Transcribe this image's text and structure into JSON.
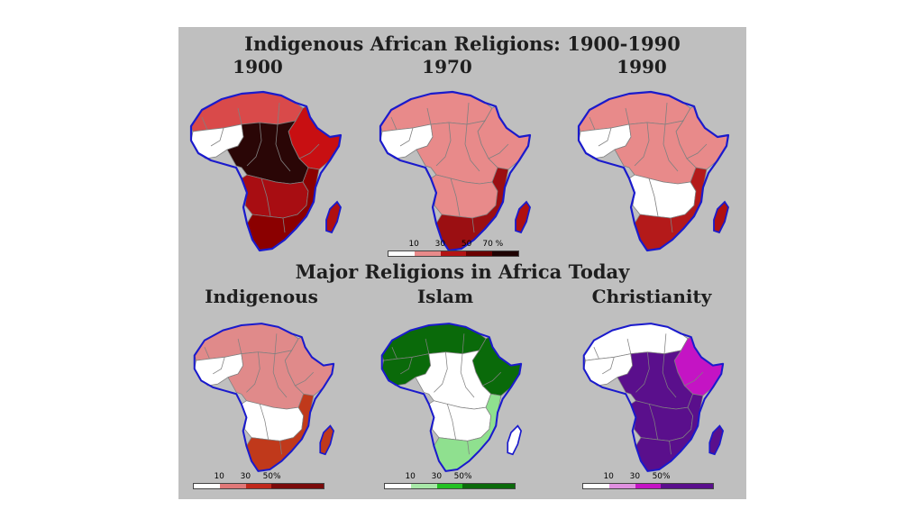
{
  "top": {
    "title": "Indigenous African Religions: 1900-1990",
    "maps": [
      {
        "label": "1900",
        "colors": {
          "w": "#ffffff",
          "n": "#d94a4a",
          "s": "#a80d12",
          "c": "#2a0606",
          "e": "#c80f12",
          "se": "#8b0000",
          "madagascar": "#b01010"
        }
      },
      {
        "label": "1970",
        "colors": {
          "w": "#ffffff",
          "n": "#e88a8a",
          "s": "#e88a8a",
          "c": "#e88a8a",
          "e": "#e88a8a",
          "se": "#9b0f12",
          "madagascar": "#b01010"
        }
      },
      {
        "label": "1990",
        "colors": {
          "w": "#ffffff",
          "n": "#e88a8a",
          "s": "#ffffff",
          "c": "#e88a8a",
          "e": "#e88a8a",
          "se": "#b41a1a",
          "madagascar": "#b01010"
        }
      }
    ],
    "legend": {
      "ticks": [
        "10",
        "30",
        "50",
        "70 %"
      ],
      "colors": [
        "#ffffff",
        "#e88a8a",
        "#b41414",
        "#6b0000",
        "#1e0303"
      ]
    }
  },
  "bottom": {
    "title": "Major Religions in Africa Today",
    "maps": [
      {
        "label": "Indigenous",
        "colors": {
          "w": "#ffffff",
          "n": "#e08a8a",
          "s": "#ffffff",
          "c": "#e08a8a",
          "e": "#e08a8a",
          "se": "#c0391b",
          "madagascar": "#c0391b"
        }
      },
      {
        "label": "Islam",
        "colors": {
          "w": "#0a6a0a",
          "n": "#0a6a0a",
          "s": "#ffffff",
          "c": "#ffffff",
          "e": "#0a6a0a",
          "se": "#8fe08f",
          "madagascar": "#ffffff"
        }
      },
      {
        "label": "Christianity",
        "colors": {
          "w": "#ffffff",
          "n": "#ffffff",
          "s": "#5a0f8c",
          "c": "#5a0f8c",
          "e": "#c414c4",
          "se": "#5a0f8c",
          "madagascar": "#5a0f8c"
        }
      }
    ],
    "legends": [
      {
        "ticks": [
          "10",
          "30",
          "50%"
        ],
        "colors": [
          "#ffffff",
          "#e07878",
          "#c0281b",
          "#7a0a0a",
          "#7a0a0a"
        ]
      },
      {
        "ticks": [
          "10",
          "30",
          "50%"
        ],
        "colors": [
          "#ffffff",
          "#a8e8a8",
          "#22c022",
          "#0a6a0a",
          "#0a6a0a"
        ]
      },
      {
        "ticks": [
          "10",
          "30",
          "50%"
        ],
        "colors": [
          "#ffffff",
          "#e090e0",
          "#c414c4",
          "#5a0f8c",
          "#5a0f8c"
        ]
      }
    ]
  }
}
